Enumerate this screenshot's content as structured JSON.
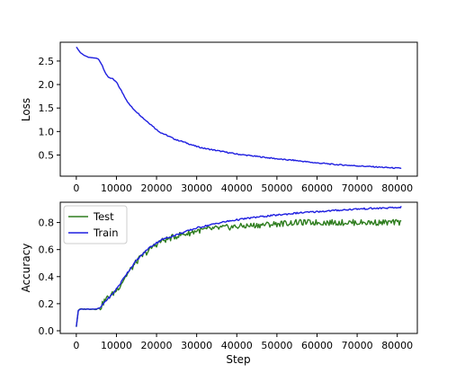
{
  "chart_data": [
    {
      "type": "line",
      "title": "",
      "xlabel": "",
      "ylabel": "Loss",
      "xlim": [
        -4000,
        85000
      ],
      "ylim": [
        0.05,
        2.9
      ],
      "xticks": [
        0,
        10000,
        20000,
        30000,
        40000,
        50000,
        60000,
        70000,
        80000
      ],
      "yticks": [
        0.5,
        1.0,
        1.5,
        2.0,
        2.5
      ],
      "ytick_labels": [
        "0.5",
        "1.0",
        "1.5",
        "2.0",
        "2.5"
      ],
      "grid": false,
      "series": [
        {
          "color": "#1f1fe0",
          "x": [
            0,
            1000,
            2000,
            3000,
            4000,
            5000,
            5500,
            6000,
            6500,
            7000,
            7500,
            8000,
            9000,
            10000,
            11000,
            12000,
            13000,
            14000,
            15000,
            16000,
            17000,
            18000,
            19000,
            20000,
            21000,
            22000,
            23000,
            24000,
            25000,
            26000,
            27000,
            28000,
            29000,
            30000,
            32000,
            34000,
            36000,
            38000,
            40000,
            42000,
            44000,
            46000,
            48000,
            50000,
            52000,
            54000,
            56000,
            58000,
            60000,
            62000,
            64000,
            66000,
            68000,
            70000,
            72000,
            74000,
            76000,
            78000,
            80000,
            81000
          ],
          "values": [
            2.8,
            2.68,
            2.62,
            2.58,
            2.57,
            2.56,
            2.54,
            2.48,
            2.4,
            2.3,
            2.2,
            2.16,
            2.12,
            2.05,
            1.9,
            1.75,
            1.6,
            1.5,
            1.42,
            1.34,
            1.26,
            1.19,
            1.12,
            1.04,
            0.98,
            0.94,
            0.9,
            0.86,
            0.82,
            0.8,
            0.77,
            0.74,
            0.71,
            0.68,
            0.64,
            0.61,
            0.58,
            0.55,
            0.52,
            0.5,
            0.48,
            0.46,
            0.44,
            0.42,
            0.4,
            0.39,
            0.37,
            0.35,
            0.33,
            0.32,
            0.3,
            0.29,
            0.28,
            0.27,
            0.26,
            0.25,
            0.24,
            0.23,
            0.22,
            0.22
          ]
        }
      ]
    },
    {
      "type": "line",
      "title": "",
      "xlabel": "Step",
      "ylabel": "Accuracy",
      "xlim": [
        -4000,
        85000
      ],
      "ylim": [
        -0.02,
        0.95
      ],
      "xticks": [
        0,
        10000,
        20000,
        30000,
        40000,
        50000,
        60000,
        70000,
        80000
      ],
      "xtick_labels": [
        "0",
        "10000",
        "20000",
        "30000",
        "40000",
        "50000",
        "60000",
        "70000",
        "80000"
      ],
      "yticks": [
        0.0,
        0.2,
        0.4,
        0.6,
        0.8
      ],
      "ytick_labels": [
        "0.0",
        "0.2",
        "0.4",
        "0.6",
        "0.8"
      ],
      "grid": false,
      "legend": "top-left",
      "series": [
        {
          "name": "Test",
          "color": "#2e7d1e",
          "x": [
            0,
            500,
            1000,
            3000,
            5000,
            6000,
            7000,
            8000,
            9000,
            10000,
            11000,
            12000,
            13000,
            14000,
            15000,
            16000,
            17000,
            18000,
            19000,
            20000,
            21000,
            22000,
            23000,
            24000,
            25000,
            26000,
            28000,
            30000,
            33000,
            36000,
            40000,
            45000,
            50000,
            55000,
            60000,
            65000,
            70000,
            75000,
            80000,
            81000
          ],
          "values": [
            0.03,
            0.15,
            0.16,
            0.16,
            0.16,
            0.17,
            0.22,
            0.25,
            0.27,
            0.3,
            0.34,
            0.39,
            0.43,
            0.47,
            0.51,
            0.54,
            0.57,
            0.59,
            0.62,
            0.64,
            0.66,
            0.67,
            0.68,
            0.69,
            0.7,
            0.71,
            0.72,
            0.74,
            0.75,
            0.76,
            0.77,
            0.78,
            0.79,
            0.8,
            0.8,
            0.8,
            0.8,
            0.8,
            0.8,
            0.8
          ]
        },
        {
          "name": "Train",
          "color": "#1f1fe0",
          "x": [
            0,
            500,
            1000,
            3000,
            5000,
            6000,
            7000,
            8000,
            9000,
            10000,
            11000,
            12000,
            13000,
            14000,
            15000,
            16000,
            17000,
            18000,
            19000,
            20000,
            21000,
            22000,
            23000,
            24000,
            25000,
            26000,
            28000,
            30000,
            33000,
            36000,
            40000,
            45000,
            50000,
            55000,
            60000,
            65000,
            70000,
            75000,
            80000,
            81000
          ],
          "values": [
            0.03,
            0.15,
            0.16,
            0.16,
            0.16,
            0.17,
            0.21,
            0.24,
            0.27,
            0.31,
            0.35,
            0.4,
            0.44,
            0.48,
            0.52,
            0.55,
            0.58,
            0.61,
            0.63,
            0.65,
            0.67,
            0.68,
            0.69,
            0.7,
            0.71,
            0.72,
            0.74,
            0.76,
            0.78,
            0.8,
            0.82,
            0.84,
            0.855,
            0.87,
            0.88,
            0.89,
            0.9,
            0.905,
            0.91,
            0.915
          ]
        }
      ]
    }
  ]
}
